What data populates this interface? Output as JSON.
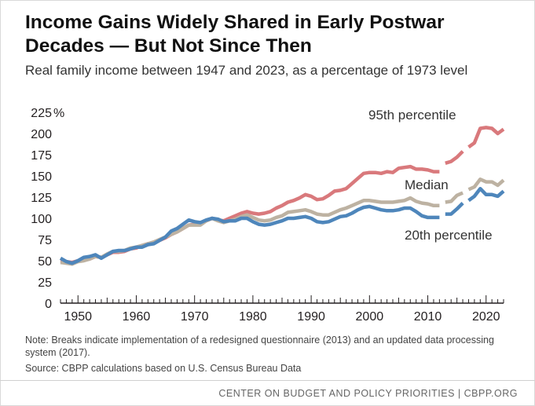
{
  "chart_data": {
    "type": "line",
    "title": "Income Gains Widely Shared in Early Postwar Decades — But Not Since Then",
    "subtitle": "Real family income between 1947 and 2023, as a percentage of 1973 level",
    "xlabel": "",
    "ylabel": "",
    "xlim": [
      1947,
      2023
    ],
    "ylim": [
      0,
      225
    ],
    "y_unit_label": "%",
    "yticks": [
      "0",
      "25",
      "50",
      "75",
      "100",
      "125",
      "150",
      "175",
      "200",
      "225"
    ],
    "xticks": [
      "1950",
      "1960",
      "1970",
      "1980",
      "1990",
      "2000",
      "2010",
      "2020"
    ],
    "break_years": [
      2013,
      2017
    ],
    "series": [
      {
        "name": "95th percentile",
        "color": "#d9797c",
        "x": [
          1947,
          1948,
          1949,
          1950,
          1951,
          1952,
          1953,
          1954,
          1955,
          1956,
          1957,
          1958,
          1959,
          1960,
          1961,
          1962,
          1963,
          1964,
          1965,
          1966,
          1967,
          1968,
          1969,
          1970,
          1971,
          1972,
          1973,
          1974,
          1975,
          1976,
          1977,
          1978,
          1979,
          1980,
          1981,
          1982,
          1983,
          1984,
          1985,
          1986,
          1987,
          1988,
          1989,
          1990,
          1991,
          1992,
          1993,
          1994,
          1995,
          1996,
          1997,
          1998,
          1999,
          2000,
          2001,
          2002,
          2003,
          2004,
          2005,
          2006,
          2007,
          2008,
          2009,
          2010,
          2011,
          2012,
          2013,
          2014,
          2015,
          2016,
          2017,
          2018,
          2019,
          2020,
          2021,
          2022,
          2023
        ],
        "values": [
          50,
          49,
          48,
          50,
          51,
          52,
          55,
          54,
          57,
          60,
          60,
          61,
          64,
          65,
          68,
          70,
          71,
          74,
          77,
          81,
          84,
          88,
          92,
          93,
          94,
          97,
          100,
          98,
          97,
          100,
          103,
          106,
          108,
          106,
          105,
          106,
          108,
          112,
          115,
          119,
          121,
          124,
          128,
          126,
          122,
          123,
          127,
          132,
          133,
          135,
          141,
          147,
          153,
          154,
          154,
          153,
          155,
          154,
          159,
          160,
          161,
          158,
          158,
          157,
          155,
          155,
          165,
          167,
          172,
          179,
          184,
          189,
          206,
          207,
          206,
          200,
          205
        ]
      },
      {
        "name": "Median",
        "color": "#bdb2a2",
        "x": [
          1947,
          1948,
          1949,
          1950,
          1951,
          1952,
          1953,
          1954,
          1955,
          1956,
          1957,
          1958,
          1959,
          1960,
          1961,
          1962,
          1963,
          1964,
          1965,
          1966,
          1967,
          1968,
          1969,
          1970,
          1971,
          1972,
          1973,
          1974,
          1975,
          1976,
          1977,
          1978,
          1979,
          1980,
          1981,
          1982,
          1983,
          1984,
          1985,
          1986,
          1987,
          1988,
          1989,
          1990,
          1991,
          1992,
          1993,
          1994,
          1995,
          1996,
          1997,
          1998,
          1999,
          2000,
          2001,
          2002,
          2003,
          2004,
          2005,
          2006,
          2007,
          2008,
          2009,
          2010,
          2011,
          2012,
          2013,
          2014,
          2015,
          2016,
          2017,
          2018,
          2019,
          2020,
          2021,
          2022,
          2023
        ],
        "values": [
          48,
          47,
          46,
          49,
          50,
          52,
          55,
          54,
          58,
          61,
          61,
          62,
          65,
          66,
          68,
          70,
          72,
          75,
          78,
          81,
          84,
          88,
          92,
          92,
          92,
          97,
          100,
          97,
          95,
          97,
          99,
          102,
          104,
          101,
          98,
          97,
          98,
          101,
          103,
          107,
          108,
          109,
          110,
          108,
          105,
          104,
          104,
          107,
          110,
          112,
          115,
          118,
          121,
          121,
          120,
          119,
          119,
          119,
          120,
          121,
          124,
          120,
          118,
          117,
          115,
          115,
          119,
          120,
          127,
          130,
          134,
          137,
          146,
          143,
          143,
          139,
          145
        ]
      },
      {
        "name": "20th percentile",
        "color": "#4e86bb",
        "x": [
          1947,
          1948,
          1949,
          1950,
          1951,
          1952,
          1953,
          1954,
          1955,
          1956,
          1957,
          1958,
          1959,
          1960,
          1961,
          1962,
          1963,
          1964,
          1965,
          1966,
          1967,
          1968,
          1969,
          1970,
          1971,
          1972,
          1973,
          1974,
          1975,
          1976,
          1977,
          1978,
          1979,
          1980,
          1981,
          1982,
          1983,
          1984,
          1985,
          1986,
          1987,
          1988,
          1989,
          1990,
          1991,
          1992,
          1993,
          1994,
          1995,
          1996,
          1997,
          1998,
          1999,
          2000,
          2001,
          2002,
          2003,
          2004,
          2005,
          2006,
          2007,
          2008,
          2009,
          2010,
          2011,
          2012,
          2013,
          2014,
          2015,
          2016,
          2017,
          2018,
          2019,
          2020,
          2021,
          2022,
          2023
        ],
        "values": [
          53,
          49,
          47,
          50,
          54,
          55,
          57,
          53,
          57,
          61,
          62,
          62,
          64,
          66,
          66,
          69,
          70,
          74,
          78,
          85,
          88,
          93,
          98,
          96,
          95,
          98,
          100,
          99,
          96,
          97,
          97,
          100,
          100,
          96,
          93,
          92,
          93,
          95,
          97,
          100,
          100,
          101,
          102,
          100,
          96,
          95,
          96,
          99,
          102,
          103,
          106,
          110,
          113,
          114,
          112,
          110,
          109,
          109,
          110,
          112,
          112,
          108,
          103,
          101,
          101,
          101,
          105,
          105,
          111,
          118,
          121,
          126,
          135,
          128,
          128,
          126,
          132
        ]
      }
    ]
  },
  "note": "Note: Breaks indicate implementation of a redesigned questionnaire (2013) and an updated data processing system (2017).",
  "source": "Source: CBPP calculations based on U.S. Census Bureau Data",
  "footer": "CENTER ON BUDGET AND POLICY PRIORITIES | CBPP.ORG"
}
